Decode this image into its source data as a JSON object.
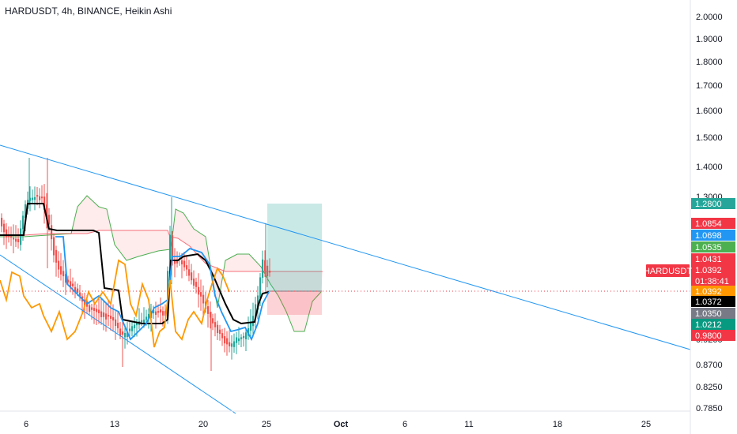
{
  "chart_title": "HARDUSDT, 4h, BINANCE, Heikin Ashi",
  "chart_data": {
    "type": "candlestick",
    "symbol": "HARDUSDT",
    "interval": "4h",
    "exchange": "BINANCE",
    "style": "Heikin Ashi",
    "y_axis_scale": "log",
    "ylim": [
      0.77,
      2.05
    ],
    "y_ticks": [
      "2.0000",
      "1.9000",
      "1.8000",
      "1.7000",
      "1.6000",
      "1.5000",
      "1.4000",
      "1.3000",
      "0.9200",
      "0.8700",
      "0.8250",
      "0.7850"
    ],
    "x_ticks": [
      "6",
      "13",
      "20",
      "25",
      "Oct",
      "6",
      "11",
      "18",
      "25"
    ],
    "last_price": "1.0392",
    "countdown": "01:38:41",
    "symbol_tag": "HARDUSDT",
    "price_labels": [
      {
        "value": "1.2800",
        "color": "#26a69a"
      },
      {
        "value": "1.0854",
        "color": "#f23645"
      },
      {
        "value": "1.0698",
        "color": "#2196f3"
      },
      {
        "value": "1.0535",
        "color": "#4caf50"
      },
      {
        "value": "1.0431",
        "color": "#f23645"
      },
      {
        "value": "1.0392",
        "color": "#f23645"
      },
      {
        "value": "01:38:41",
        "color": "#f23645"
      },
      {
        "value": "1.0392",
        "color": "#ff9800"
      },
      {
        "value": "1.0372",
        "color": "#000000"
      },
      {
        "value": "1.0350",
        "color": "#787b86"
      },
      {
        "value": "1.0212",
        "color": "#089981"
      },
      {
        "value": "0.9800",
        "color": "#f23645"
      }
    ],
    "position": {
      "entry": 1.0392,
      "target": 1.28,
      "stop": 0.98
    },
    "trendlines": [
      {
        "name": "upper-resistance",
        "color": "#2196f3"
      },
      {
        "name": "lower-support",
        "color": "#2196f3"
      }
    ],
    "indicators": [
      {
        "name": "ichimoku-kumo",
        "colors": [
          "#4caf50",
          "#f23645"
        ]
      },
      {
        "name": "base-line",
        "color": "#000000"
      },
      {
        "name": "conversion-line",
        "color": "#2196f3"
      },
      {
        "name": "lagging-span",
        "color": "#ff9800"
      }
    ],
    "colors": {
      "up": "#26a69a",
      "down": "#ef5350",
      "grid": "none"
    }
  }
}
